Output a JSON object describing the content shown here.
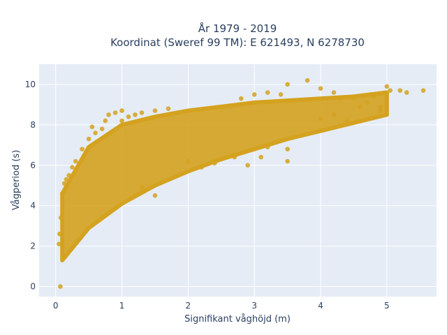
{
  "chart_data": {
    "type": "scatter",
    "title_line1": "År 1979 - 2019",
    "title_line2": "Koordinat (Sweref 99 TM): E 621493, N 6278730",
    "xlabel": "Signifikant våghöjd (m)",
    "ylabel": "Vågperiod (s)",
    "xlim": [
      -0.25,
      5.75
    ],
    "ylim": [
      -0.5,
      11
    ],
    "xticks": [
      0,
      1,
      2,
      3,
      4,
      5
    ],
    "yticks": [
      0,
      2,
      4,
      6,
      8,
      10
    ],
    "grid": true,
    "marker_color": "#D4A21F",
    "background_color": "#E5ECF6",
    "trend": {
      "h": [
        0.1,
        0.5,
        1.0,
        1.5,
        2.0,
        2.5,
        3.0,
        3.5,
        4.0,
        4.5,
        5.0
      ],
      "lower": [
        1.3,
        2.9,
        4.1,
        5.0,
        5.7,
        6.3,
        6.8,
        7.3,
        7.7,
        8.1,
        8.5
      ],
      "upper": [
        4.6,
        6.9,
        8.0,
        8.4,
        8.7,
        8.9,
        9.1,
        9.2,
        9.3,
        9.4,
        9.6
      ]
    },
    "points": [
      [
        0.07,
        0.0
      ],
      [
        0.05,
        2.1
      ],
      [
        0.06,
        2.6
      ],
      [
        0.08,
        3.4
      ],
      [
        0.1,
        4.6
      ],
      [
        0.13,
        5.1
      ],
      [
        0.16,
        5.3
      ],
      [
        0.2,
        5.5
      ],
      [
        0.25,
        5.9
      ],
      [
        0.3,
        6.2
      ],
      [
        0.4,
        6.8
      ],
      [
        0.5,
        7.3
      ],
      [
        0.55,
        7.9
      ],
      [
        0.6,
        7.6
      ],
      [
        0.7,
        7.8
      ],
      [
        0.75,
        8.2
      ],
      [
        0.8,
        8.5
      ],
      [
        0.9,
        8.6
      ],
      [
        1.0,
        8.7
      ],
      [
        1.0,
        8.2
      ],
      [
        1.1,
        8.4
      ],
      [
        1.2,
        8.5
      ],
      [
        1.3,
        8.6
      ],
      [
        1.5,
        8.7
      ],
      [
        1.7,
        8.8
      ],
      [
        1.3,
        4.9
      ],
      [
        1.5,
        4.5
      ],
      [
        1.2,
        4.5
      ],
      [
        2.0,
        6.2
      ],
      [
        2.2,
        5.9
      ],
      [
        2.4,
        6.1
      ],
      [
        2.5,
        6.3
      ],
      [
        2.7,
        6.4
      ],
      [
        2.9,
        6.0
      ],
      [
        3.1,
        6.4
      ],
      [
        3.0,
        6.8
      ],
      [
        3.2,
        6.9
      ],
      [
        3.5,
        6.8
      ],
      [
        3.5,
        6.2
      ],
      [
        2.8,
        9.3
      ],
      [
        3.0,
        9.5
      ],
      [
        3.2,
        9.6
      ],
      [
        3.4,
        9.5
      ],
      [
        3.5,
        10.0
      ],
      [
        3.8,
        10.2
      ],
      [
        4.0,
        9.8
      ],
      [
        4.2,
        9.6
      ],
      [
        4.3,
        9.3
      ],
      [
        4.5,
        9.3
      ],
      [
        4.6,
        8.9
      ],
      [
        4.7,
        9.1
      ],
      [
        4.8,
        9.4
      ],
      [
        4.9,
        8.9
      ],
      [
        5.0,
        9.5
      ],
      [
        5.0,
        9.9
      ],
      [
        5.05,
        9.7
      ],
      [
        5.2,
        9.7
      ],
      [
        5.3,
        9.6
      ],
      [
        5.55,
        9.7
      ],
      [
        4.9,
        8.7
      ],
      [
        4.0,
        8.3
      ],
      [
        4.2,
        8.5
      ],
      [
        4.4,
        8.2
      ]
    ]
  }
}
